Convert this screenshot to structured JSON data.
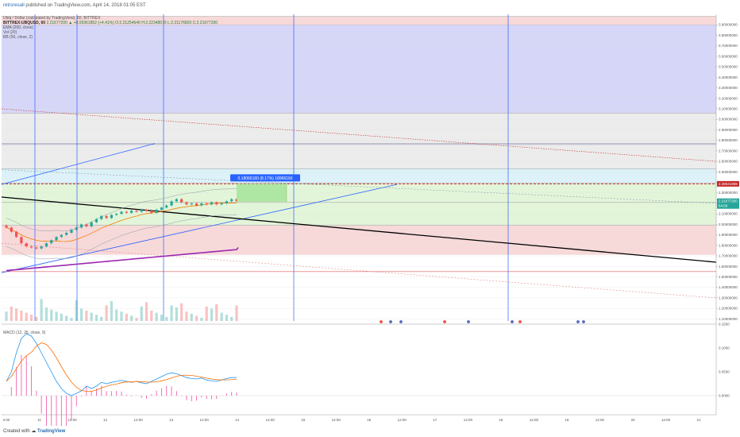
{
  "header": {
    "author": "retroresall",
    "published": " published on TradingView.com, April 14, 2018 01:05 EST"
  },
  "legend": {
    "title": "Ubiq / Dollar (calculated by TradingView), 60, BITTREX",
    "symbol_line_symbol": "BITTREX:UBQUSD, 60",
    "symbol_line_values": "2.21677200 ▲ +0.09361852 (+4.41%) O:2.21254640 H:2.22348576 L:2.21176820 C:2.21677200",
    "indicators": [
      "EMA (200, close)",
      "Vol (20)",
      "BB (50, close, 2)"
    ],
    "macd": "MACD (12, 26, close, 9)"
  },
  "annotation": {
    "measure_label": "0.18066160 (8.17%) 18066160"
  },
  "price_badges": {
    "red": "2.38641869",
    "green_price": "2.21677200",
    "green_time": "54:59"
  },
  "footer": {
    "prefix": "Created with",
    "brand": "TradingView"
  },
  "colors": {
    "up": "#26a69a",
    "down": "#ef5350",
    "ema": "#9c27b0",
    "bb": "#f57c00",
    "trendline": "#000000",
    "blue_line": "#2962ff",
    "fib_red": "#f4cccc",
    "fib_blue": "#c8c8f5",
    "fib_gray": "#e6e6e6",
    "fib_cyan": "#d0ecf5",
    "fib_green": "#d9f2cc",
    "macd_line": "#2196f3",
    "signal_line": "#ff6d00",
    "hist": "#e91e8c"
  },
  "chart_data": {
    "type": "candlestick",
    "symbol": "UBQUSD",
    "timeframe": "60",
    "x_labels": [
      "2:00",
      "11",
      "12:00",
      "12",
      "12:00",
      "13",
      "12:00",
      "14",
      "12:00",
      "15",
      "12:00",
      "16",
      "12:00",
      "17",
      "12:00",
      "18",
      "12:00",
      "19",
      "12:00",
      "20",
      "12:00",
      "21"
    ],
    "y_ticks": [
      "3.90000000",
      "3.80000000",
      "3.70000000",
      "3.60000000",
      "3.50000000",
      "3.40000000",
      "3.30000000",
      "3.20000000",
      "3.10000000",
      "3.00000000",
      "2.90000000",
      "2.80000000",
      "2.70000000",
      "2.60000000",
      "2.50000000",
      "2.40000000",
      "2.30000000",
      "2.20000000",
      "2.10000000",
      "2.00000000",
      "1.90000000",
      "1.80000000",
      "1.70000000",
      "1.60000000",
      "1.50000000",
      "1.40000000",
      "1.30000000",
      "1.20000000",
      "1.10000000"
    ],
    "y_range": [
      1.08,
      4.0
    ],
    "macd_ticks": [
      "0.1500",
      "0.1000",
      "0.0500",
      "0.0000"
    ],
    "macd_range": [
      -0.04,
      0.15
    ],
    "fib_zones": [
      {
        "from": 3.98,
        "to": 3.9,
        "color": "red"
      },
      {
        "from": 3.9,
        "to": 3.06,
        "color": "blue"
      },
      {
        "from": 3.06,
        "to": 2.77,
        "color": "gray"
      },
      {
        "from": 2.77,
        "to": 2.76,
        "color": "blue"
      },
      {
        "from": 2.76,
        "to": 2.53,
        "color": "gray"
      },
      {
        "from": 2.53,
        "to": 2.39,
        "color": "cyan"
      },
      {
        "from": 2.39,
        "to": 2.21,
        "color": "green"
      },
      {
        "from": 2.21,
        "to": 1.99,
        "color": "green"
      },
      {
        "from": 1.99,
        "to": 1.71,
        "color": "red"
      }
    ],
    "closes": [
      1.97,
      1.93,
      1.88,
      1.82,
      1.79,
      1.78,
      1.77,
      1.79,
      1.82,
      1.85,
      1.88,
      1.9,
      1.92,
      1.95,
      1.97,
      2.0,
      1.98,
      2.02,
      2.05,
      2.08,
      2.06,
      2.09,
      2.1,
      2.12,
      2.11,
      2.13,
      2.12,
      2.14,
      2.13,
      2.11,
      2.14,
      2.16,
      2.18,
      2.22,
      2.24,
      2.21,
      2.19,
      2.2,
      2.18,
      2.2,
      2.19,
      2.21,
      2.19,
      2.2,
      2.22,
      2.24,
      2.22
    ],
    "last_price": 2.21677
  }
}
